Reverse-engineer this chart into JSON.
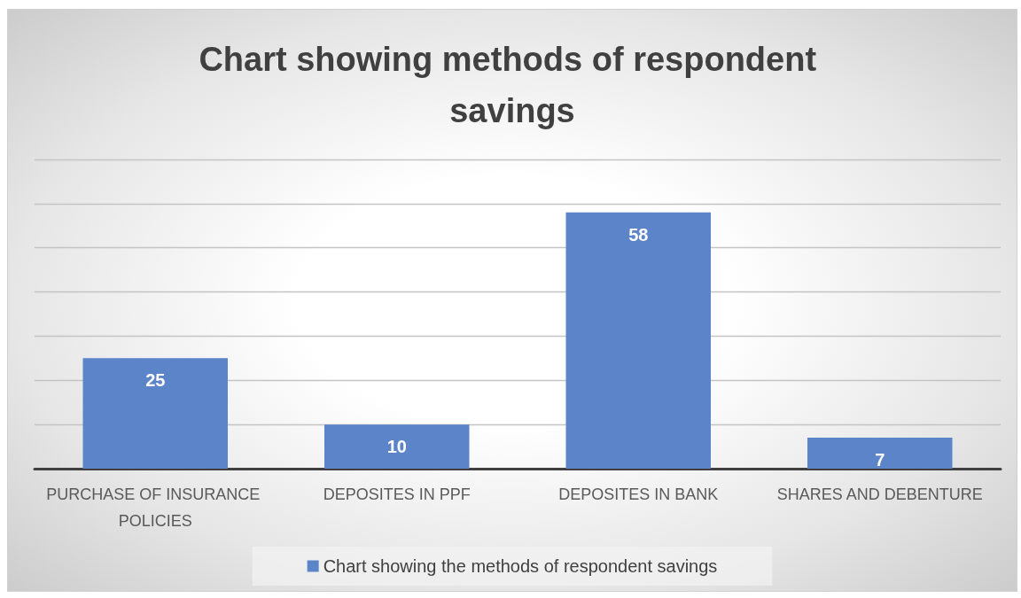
{
  "chart_data": {
    "type": "bar",
    "title": "Chart showing methods of respondent savings",
    "categories": [
      "PURCHASE OF INSURANCE POLICIES",
      "DEPOSITES IN PPF",
      "DEPOSITES IN BANK",
      "SHARES AND DEBENTURE"
    ],
    "series": [
      {
        "name": "Chart showing the methods of respondent savings",
        "color": "#5b84c9",
        "values": [
          25,
          10,
          58,
          7
        ]
      }
    ],
    "ylim": [
      0,
      70
    ],
    "yticks": [
      {
        "value": 0,
        "label": null
      },
      {
        "value": 10,
        "label": null
      },
      {
        "value": 20,
        "label": null
      },
      {
        "value": 30,
        "label": null
      },
      {
        "value": 40,
        "label": null
      },
      {
        "value": 50,
        "label": null
      },
      {
        "value": 60,
        "label": null
      },
      {
        "value": 70,
        "label": null
      }
    ],
    "grid": "y",
    "legend": "bottom",
    "data_labels": true,
    "tick_labels": "x"
  }
}
